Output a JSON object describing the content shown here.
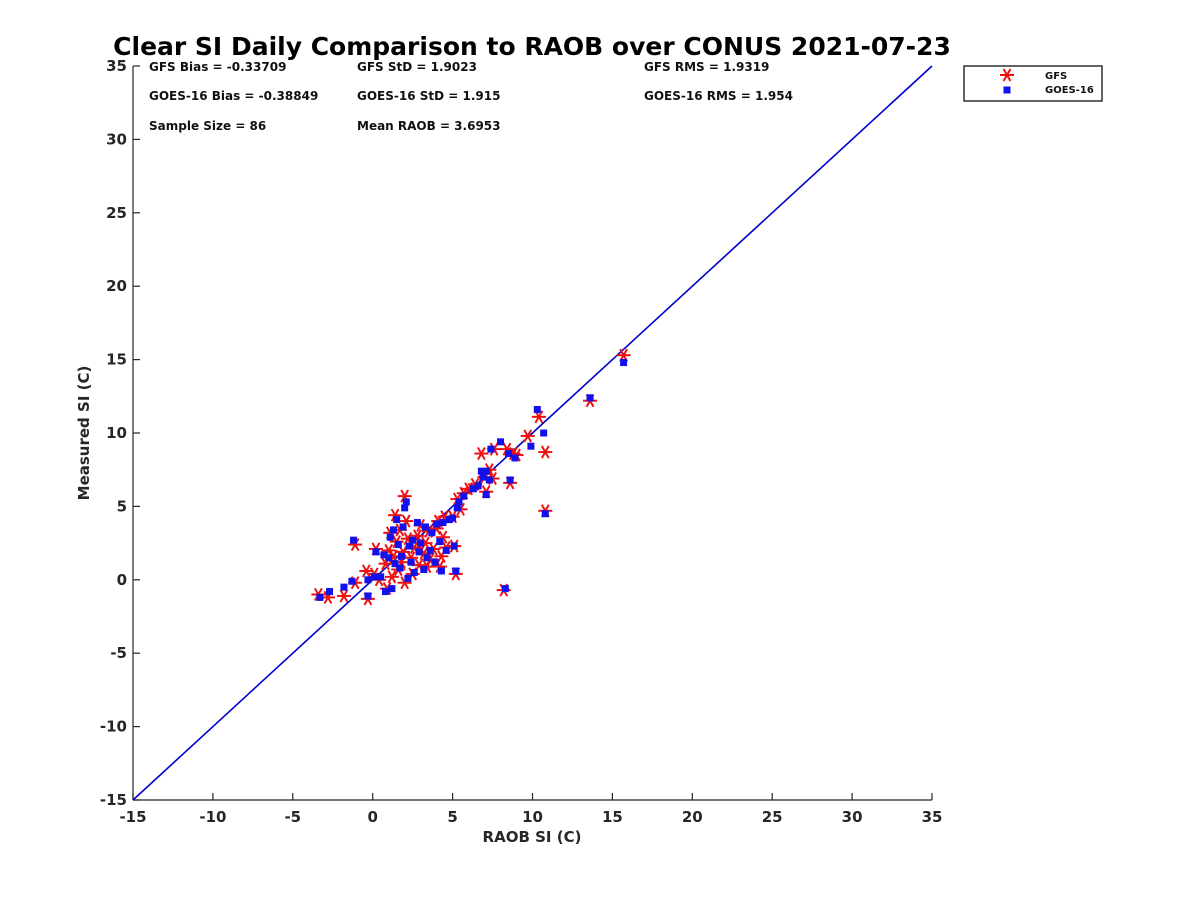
{
  "chart_data": {
    "type": "scatter",
    "title": "Clear SI Daily Comparison to RAOB over CONUS 2021-07-23",
    "xlabel": "RAOB SI (C)",
    "ylabel": "Measured SI (C)",
    "xlim": [
      -15,
      35
    ],
    "ylim": [
      -15,
      35
    ],
    "xticks": [
      "-15",
      "-10",
      "-5",
      "0",
      "5",
      "10",
      "15",
      "20",
      "25",
      "30",
      "35"
    ],
    "yticks": [
      "-15",
      "-10",
      "-5",
      "0",
      "5",
      "10",
      "15",
      "20",
      "25",
      "30",
      "35"
    ],
    "grid": false,
    "legend_position": "outside top-right",
    "stats": [
      "GFS Bias = -0.33709",
      "GFS StD = 1.9023",
      "GFS RMS = 1.9319",
      "GOES-16 Bias = -0.38849",
      "GOES-16 StD = 1.915",
      "GOES-16 RMS = 1.954",
      "Sample Size = 86",
      "Mean RAOB = 3.6953"
    ],
    "reference_line": {
      "x": [
        -15,
        35
      ],
      "y": [
        -15,
        35
      ],
      "color": "#0000cc"
    },
    "series": [
      {
        "name": "GFS",
        "marker": "asterisk",
        "color": "#ee1111",
        "points": [
          [
            -3.4,
            -1.0
          ],
          [
            -2.8,
            -1.2
          ],
          [
            -1.8,
            -1.1
          ],
          [
            -1.1,
            -0.2
          ],
          [
            -1.1,
            2.4
          ],
          [
            -0.4,
            0.6
          ],
          [
            -0.3,
            -1.3
          ],
          [
            0.1,
            0.4
          ],
          [
            0.2,
            2.1
          ],
          [
            0.4,
            0.0
          ],
          [
            0.8,
            1.1
          ],
          [
            0.9,
            -0.6
          ],
          [
            1.0,
            2.0
          ],
          [
            1.1,
            3.2
          ],
          [
            1.2,
            0.2
          ],
          [
            1.3,
            1.6
          ],
          [
            1.4,
            4.4
          ],
          [
            1.5,
            2.6
          ],
          [
            1.6,
            0.7
          ],
          [
            1.7,
            3.4
          ],
          [
            1.8,
            1.2
          ],
          [
            1.9,
            1.9
          ],
          [
            2.0,
            -0.2
          ],
          [
            2.0,
            5.7
          ],
          [
            2.1,
            4.0
          ],
          [
            2.2,
            2.8
          ],
          [
            2.4,
            1.5
          ],
          [
            2.5,
            0.4
          ],
          [
            2.6,
            2.2
          ],
          [
            2.8,
            3.0
          ],
          [
            2.9,
            1.0
          ],
          [
            3.0,
            3.7
          ],
          [
            3.2,
            1.8
          ],
          [
            3.3,
            2.5
          ],
          [
            3.4,
            0.9
          ],
          [
            3.5,
            3.3
          ],
          [
            3.6,
            1.4
          ],
          [
            3.8,
            2.1
          ],
          [
            4.0,
            3.5
          ],
          [
            4.1,
            4.0
          ],
          [
            4.2,
            0.9
          ],
          [
            4.3,
            1.6
          ],
          [
            4.4,
            2.9
          ],
          [
            4.5,
            4.3
          ],
          [
            4.6,
            2.2
          ],
          [
            5.0,
            4.3
          ],
          [
            5.1,
            2.3
          ],
          [
            5.2,
            0.4
          ],
          [
            5.3,
            5.5
          ],
          [
            5.5,
            4.8
          ],
          [
            5.7,
            5.9
          ],
          [
            6.0,
            6.2
          ],
          [
            6.4,
            6.5
          ],
          [
            6.8,
            8.6
          ],
          [
            7.0,
            7.0
          ],
          [
            7.1,
            6.0
          ],
          [
            7.3,
            7.5
          ],
          [
            7.5,
            6.9
          ],
          [
            7.6,
            8.9
          ],
          [
            8.2,
            -0.7
          ],
          [
            8.4,
            8.9
          ],
          [
            8.6,
            6.6
          ],
          [
            8.8,
            8.6
          ],
          [
            9.0,
            8.5
          ],
          [
            9.7,
            9.8
          ],
          [
            10.4,
            11.1
          ],
          [
            10.8,
            8.7
          ],
          [
            10.8,
            4.7
          ],
          [
            13.6,
            12.2
          ],
          [
            15.7,
            15.3
          ]
        ]
      },
      {
        "name": "GOES-16",
        "marker": "square",
        "color": "#1111ee",
        "points": [
          [
            -3.3,
            -1.2
          ],
          [
            -2.7,
            -0.8
          ],
          [
            -1.8,
            -0.5
          ],
          [
            -1.3,
            -0.1
          ],
          [
            -1.2,
            2.7
          ],
          [
            -0.3,
            0.0
          ],
          [
            -0.3,
            -1.1
          ],
          [
            0.1,
            0.2
          ],
          [
            0.2,
            1.9
          ],
          [
            0.5,
            0.2
          ],
          [
            0.7,
            1.7
          ],
          [
            0.8,
            -0.8
          ],
          [
            1.0,
            1.5
          ],
          [
            1.1,
            2.9
          ],
          [
            1.2,
            -0.6
          ],
          [
            1.3,
            3.4
          ],
          [
            1.4,
            1.1
          ],
          [
            1.5,
            4.1
          ],
          [
            1.6,
            2.4
          ],
          [
            1.7,
            0.8
          ],
          [
            1.8,
            1.6
          ],
          [
            1.9,
            3.6
          ],
          [
            2.0,
            4.9
          ],
          [
            2.1,
            5.3
          ],
          [
            2.2,
            0.1
          ],
          [
            2.3,
            2.3
          ],
          [
            2.4,
            1.2
          ],
          [
            2.5,
            2.7
          ],
          [
            2.6,
            0.5
          ],
          [
            2.8,
            3.9
          ],
          [
            2.9,
            1.9
          ],
          [
            3.0,
            2.5
          ],
          [
            3.2,
            0.7
          ],
          [
            3.3,
            3.6
          ],
          [
            3.4,
            1.5
          ],
          [
            3.6,
            2.0
          ],
          [
            3.7,
            3.2
          ],
          [
            3.9,
            1.2
          ],
          [
            4.0,
            3.8
          ],
          [
            4.2,
            2.6
          ],
          [
            4.3,
            0.6
          ],
          [
            4.4,
            3.9
          ],
          [
            4.6,
            2.0
          ],
          [
            4.8,
            4.1
          ],
          [
            5.0,
            4.2
          ],
          [
            5.1,
            2.3
          ],
          [
            5.2,
            0.6
          ],
          [
            5.3,
            4.9
          ],
          [
            5.4,
            5.3
          ],
          [
            5.7,
            5.7
          ],
          [
            6.3,
            6.2
          ],
          [
            6.6,
            6.4
          ],
          [
            6.8,
            7.4
          ],
          [
            6.9,
            7.0
          ],
          [
            7.1,
            5.8
          ],
          [
            7.1,
            7.4
          ],
          [
            7.3,
            6.8
          ],
          [
            7.4,
            8.9
          ],
          [
            8.0,
            9.4
          ],
          [
            8.3,
            -0.6
          ],
          [
            8.5,
            8.6
          ],
          [
            8.6,
            6.8
          ],
          [
            8.9,
            8.3
          ],
          [
            9.9,
            9.1
          ],
          [
            10.3,
            11.6
          ],
          [
            10.7,
            10.0
          ],
          [
            10.8,
            4.5
          ],
          [
            13.6,
            12.4
          ],
          [
            15.7,
            14.8
          ]
        ]
      }
    ]
  }
}
